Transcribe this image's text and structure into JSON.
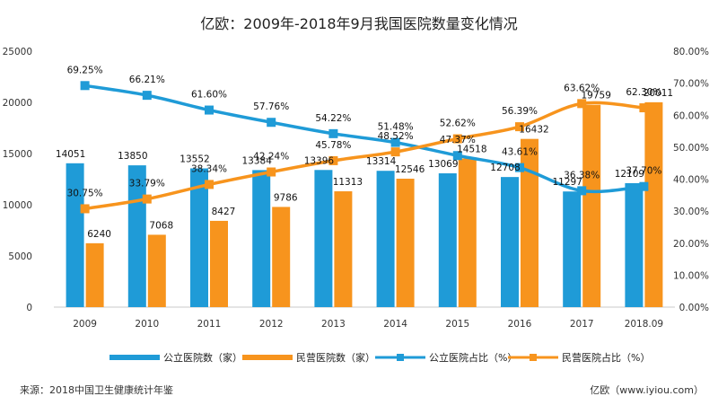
{
  "chart_data": {
    "type": "bar",
    "title": "亿欧：2009年-2018年9月我国医院数量变化情况",
    "categories": [
      "2009",
      "2010",
      "2011",
      "2012",
      "2013",
      "2014",
      "2015",
      "2016",
      "2017",
      "2018.09"
    ],
    "ylim_left": [
      0,
      25000
    ],
    "yticks_left": [
      "0",
      "5000",
      "10000",
      "15000",
      "20000",
      "25000"
    ],
    "ylim_right": [
      0,
      80
    ],
    "yticks_right": [
      "0.00%",
      "10.00%",
      "20.00%",
      "30.00%",
      "40.00%",
      "50.00%",
      "60.00%",
      "70.00%",
      "80.00%"
    ],
    "grid": false,
    "legend_position": "bottom",
    "series": [
      {
        "name": "公立医院数（家）",
        "type": "bar",
        "axis": "left",
        "color": "#1f9bd7",
        "values": [
          14051,
          13850,
          13552,
          13384,
          13396,
          13314,
          13069,
          12708,
          11297,
          12109
        ],
        "labels": [
          "14051",
          "13850",
          "13552",
          "13384",
          "13396",
          "13314",
          "13069",
          "12708",
          "11297",
          "12109"
        ]
      },
      {
        "name": "民营医院数（家）",
        "type": "bar",
        "axis": "left",
        "color": "#f7941d",
        "values": [
          6240,
          7068,
          8427,
          9786,
          11313,
          12546,
          14518,
          16432,
          19759,
          20011
        ],
        "labels": [
          "6240",
          "7068",
          "8427",
          "9786",
          "11313",
          "12546",
          "14518",
          "16432",
          "19759",
          "20011"
        ]
      },
      {
        "name": "公立医院占比（%）",
        "type": "line",
        "axis": "right",
        "color": "#1f9bd7",
        "values": [
          69.25,
          66.21,
          61.6,
          57.76,
          54.22,
          51.48,
          47.37,
          43.61,
          36.38,
          37.7
        ],
        "labels": [
          "69.25%",
          "66.21%",
          "61.60%",
          "57.76%",
          "54.22%",
          "51.48%",
          "47.37%",
          "43.61%",
          "36.38%",
          "37.70%"
        ]
      },
      {
        "name": "民营医院占比（%）",
        "type": "line",
        "axis": "right",
        "color": "#f7941d",
        "values": [
          30.75,
          33.79,
          38.34,
          42.24,
          45.78,
          48.52,
          52.62,
          56.39,
          63.62,
          62.3
        ],
        "labels": [
          "30.75%",
          "33.79%",
          "38.34%",
          "42.24%",
          "45.78%",
          "48.52%",
          "52.62%",
          "56.39%",
          "63.62%",
          "62.30%"
        ]
      }
    ]
  },
  "footer": {
    "source": "来源：2018中国卫生健康统计年鉴",
    "brand": "亿欧（www.iyiou.com）"
  }
}
